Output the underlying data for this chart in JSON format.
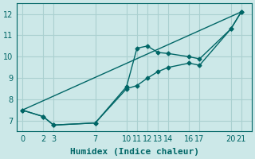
{
  "background_color": "#cce8e8",
  "grid_color": "#aad0d0",
  "line_color": "#006666",
  "series": [
    {
      "x": [
        0,
        2,
        3,
        7,
        10,
        11,
        12,
        13,
        14,
        16,
        17,
        20,
        21
      ],
      "y": [
        7.5,
        7.2,
        6.8,
        6.9,
        8.6,
        10.4,
        10.5,
        10.2,
        10.15,
        10.0,
        9.9,
        11.3,
        12.1
      ],
      "marker": "D"
    },
    {
      "x": [
        0,
        2,
        3,
        7,
        10,
        11,
        12,
        13,
        14,
        16,
        17,
        20,
        21
      ],
      "y": [
        7.5,
        7.2,
        6.8,
        6.9,
        8.5,
        8.65,
        9.0,
        9.3,
        9.5,
        9.7,
        9.6,
        11.3,
        12.1
      ],
      "marker": "D"
    },
    {
      "x": [
        0,
        21
      ],
      "y": [
        7.5,
        12.1
      ],
      "marker": "none"
    }
  ],
  "xlabel": "Humidex (Indice chaleur)",
  "xticks": [
    0,
    2,
    3,
    7,
    10,
    11,
    12,
    13,
    14,
    16,
    17,
    20,
    21
  ],
  "yticks": [
    7,
    8,
    9,
    10,
    11,
    12
  ],
  "xlim": [
    -0.5,
    22
  ],
  "ylim": [
    6.5,
    12.5
  ],
  "xlabel_fontsize": 8,
  "tick_fontsize": 7
}
